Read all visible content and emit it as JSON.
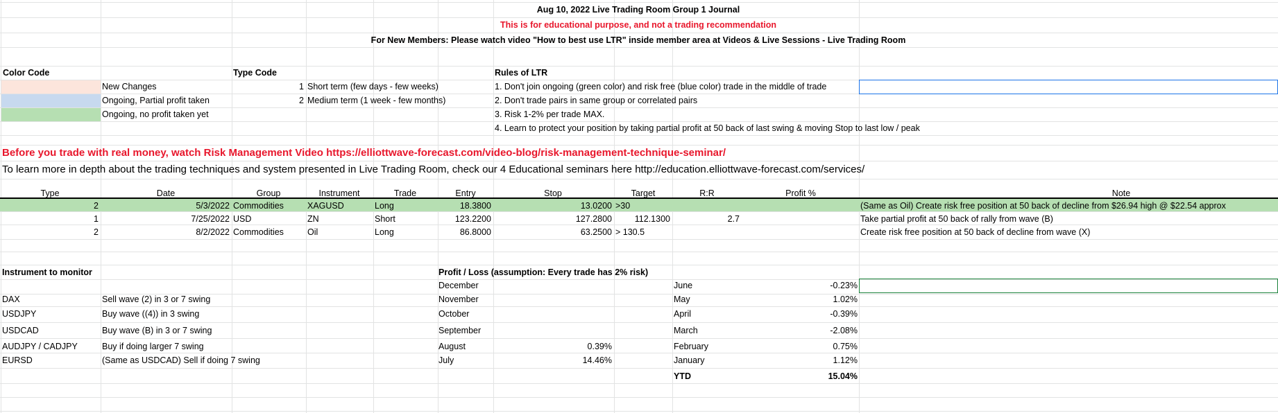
{
  "colors": {
    "new_changes": "#fce5dc",
    "partial_profit": "#c7d9ef",
    "no_profit": "#b6dfb2",
    "alert_red": "#e8172c",
    "grid": "#e2e3e3"
  },
  "header": {
    "title": "Aug 10, 2022 Live Trading Room Group 1 Journal",
    "disclaimer": "This is  for educational purpose, and not a trading recommendation",
    "new_members": "For New Members: Please watch video \"How to best use LTR\" inside member area at Videos & Live Sessions - Live Trading Room"
  },
  "color_code": {
    "title": "Color Code",
    "items": [
      "New Changes",
      "Ongoing, Partial profit taken",
      "Ongoing, no profit taken yet"
    ]
  },
  "type_code": {
    "title": "Type Code",
    "items": [
      {
        "num": "1",
        "label": "Short term (few days - few weeks)"
      },
      {
        "num": "2",
        "label": "Medium term (1 week - few months)"
      }
    ]
  },
  "rules": {
    "title": "Rules of LTR",
    "items": [
      "1. Don't join ongoing (green color) and risk free (blue color) trade in the middle of trade",
      "2. Don't trade pairs in same group or correlated pairs",
      "3. Risk 1-2% per trade MAX.",
      "4. Learn to protect your position by taking partial profit at 50 back of last swing & moving Stop to last low / peak"
    ]
  },
  "notices": {
    "risk_video": "Before you trade with real money, watch Risk Management Video https://elliottwave-forecast.com/video-blog/risk-management-technique-seminar/",
    "seminars": "To learn more in depth about the trading techniques and system presented in Live Trading Room, check our 4 Educational seminars here http://education.elliottwave-forecast.com/services/"
  },
  "trades": {
    "headers": {
      "type": "Type",
      "date": "Date",
      "group": "Group",
      "instrument": "Instrument",
      "trade": "Trade",
      "entry": "Entry",
      "stop": "Stop",
      "target": "Target",
      "rr": "R:R",
      "profit": "Profit %",
      "note": "Note"
    },
    "rows": [
      {
        "type": "2",
        "date": "5/3/2022",
        "group": "Commodities",
        "instrument": "XAGUSD",
        "trade": "Long",
        "entry": "18.3800",
        "stop": "13.0200",
        "target": ">30",
        "target2": "",
        "rr": "",
        "profit": "",
        "note": "(Same as Oil) Create risk free position at 50 back of decline from $26.94 high @ $22.54 approx"
      },
      {
        "type": "1",
        "date": "7/25/2022",
        "group": "USD",
        "instrument": "ZN",
        "trade": "Short",
        "entry": "123.2200",
        "stop": "127.2800",
        "target": "",
        "target2": "112.1300",
        "rr": "2.7",
        "profit": "",
        "note": "Take partial profit at 50 back of rally from wave (B)"
      },
      {
        "type": "2",
        "date": "8/2/2022",
        "group": "Commodities",
        "instrument": "Oil",
        "trade": "Long",
        "entry": "86.8000",
        "stop": "63.2500",
        "target": "> 130.5",
        "target2": "",
        "rr": "",
        "profit": "",
        "note": "Create risk free position at 50 back of decline from wave (X)"
      }
    ]
  },
  "monitor": {
    "title": "Instrument to monitor",
    "items": [
      {
        "instrument": "DAX",
        "note": "Sell wave (2) in 3 or 7 swing"
      },
      {
        "instrument": "USDJPY",
        "note": "Buy wave ((4)) in 3 swing"
      },
      {
        "instrument": "USDCAD",
        "note": "Buy wave (B) in 3 or 7 swing"
      },
      {
        "instrument": "AUDJPY / CADJPY",
        "note": "Buy if doing larger 7 swing"
      },
      {
        "instrument": "EURSD",
        "note": "(Same as USDCAD) Sell if doing 7 swing"
      }
    ]
  },
  "pnl": {
    "title": "Profit / Loss (assumption: Every trade has 2% risk)",
    "left": [
      {
        "month": "December",
        "value": ""
      },
      {
        "month": "November",
        "value": ""
      },
      {
        "month": "October",
        "value": ""
      },
      {
        "month": "September",
        "value": ""
      },
      {
        "month": "August",
        "value": "0.39%"
      },
      {
        "month": "July",
        "value": "14.46%"
      }
    ],
    "right": [
      {
        "month": "June",
        "value": "-0.23%"
      },
      {
        "month": "May",
        "value": "1.02%"
      },
      {
        "month": "April",
        "value": "-0.39%"
      },
      {
        "month": "March",
        "value": "-2.08%"
      },
      {
        "month": "February",
        "value": "0.75%"
      },
      {
        "month": "January",
        "value": "1.12%"
      }
    ],
    "ytd_label": "YTD",
    "ytd_value": "15.04%"
  }
}
